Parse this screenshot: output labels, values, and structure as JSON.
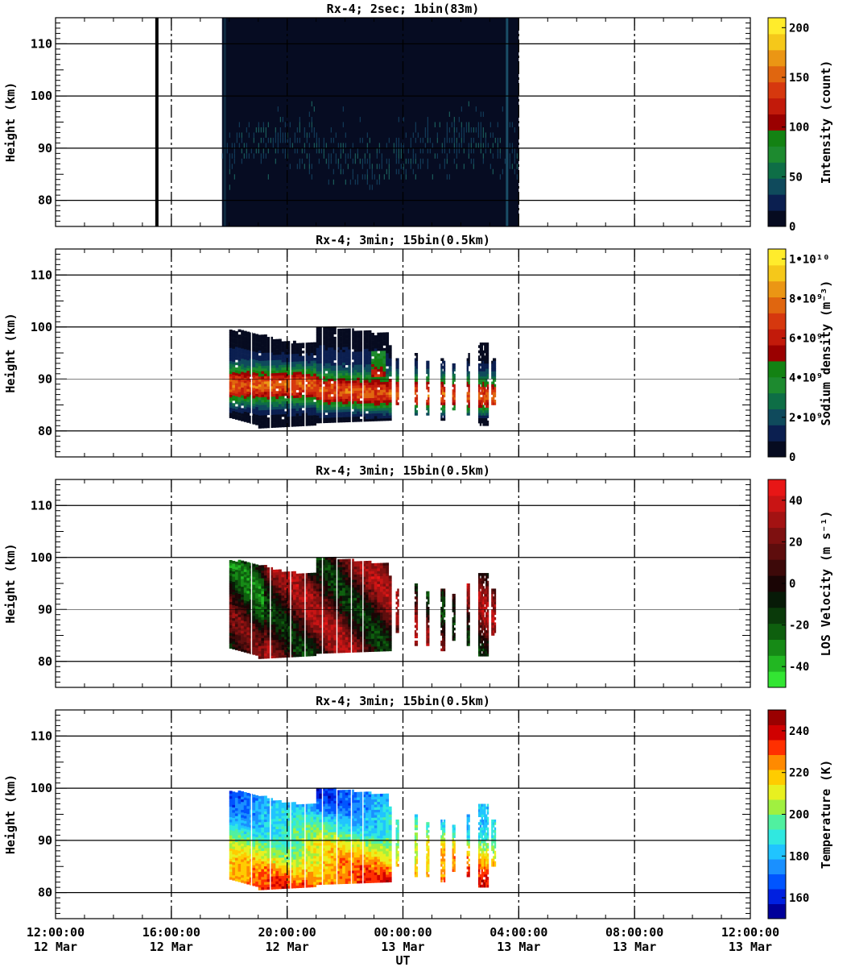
{
  "chart_data": [
    {
      "type": "heatmap",
      "title": "Rx-4;  2sec; 1bin(83m)",
      "ylabel": "Height (km)",
      "xlim_hours_since_12Mar_12UT": [
        0,
        24
      ],
      "ylim": [
        75,
        115
      ],
      "yticks": [
        80,
        90,
        100,
        110
      ],
      "grid": true,
      "colorbar": {
        "label": "Intensity (count)",
        "range": [
          0,
          210
        ],
        "ticks": [
          0,
          50,
          100,
          150,
          200
        ],
        "tick_labels": [
          "0",
          "50",
          "100",
          "150",
          "200"
        ],
        "colors": [
          "#060b20",
          "#0b1f50",
          "#0f4a5c",
          "#0e6e46",
          "#1d8a2f",
          "#138213",
          "#9a0000",
          "#c21a0a",
          "#d6380e",
          "#e0660f",
          "#eb9614",
          "#f5c81a",
          "#ffec2c"
        ]
      },
      "data_extent": {
        "start": "2025-03-12 17:45",
        "end": "2025-03-13 04:00"
      },
      "signal_layer_km": [
        82,
        98
      ],
      "vertical_marks": [
        "2025-03-12 15:30"
      ]
    },
    {
      "type": "heatmap",
      "title": "Rx-4; 3min; 15bin(0.5km)",
      "ylabel": "Height (km)",
      "ylim": [
        75,
        115
      ],
      "yticks": [
        80,
        90,
        100,
        110
      ],
      "grid": true,
      "colorbar": {
        "label": "Sodium density (m⁻³)",
        "range": [
          0,
          10500000000.0
        ],
        "ticks": [
          0,
          2000000000.0,
          4000000000.0,
          6000000000.0,
          8000000000.0,
          10000000000.0
        ],
        "tick_labels": [
          "0",
          "2•10⁹",
          "4•10⁹",
          "6•10⁹",
          "8•10⁹",
          "1•10¹⁰"
        ],
        "colors": [
          "#060b20",
          "#0b1f50",
          "#0f4a5c",
          "#0e6e46",
          "#1d8a2f",
          "#138213",
          "#9a0000",
          "#c21a0a",
          "#d6380e",
          "#e0660f",
          "#eb9614",
          "#f5c81a",
          "#ffec2c"
        ]
      },
      "data_extent": {
        "start": "2025-03-12 18:00",
        "end": "2025-03-13 03:30"
      },
      "layer_km": [
        80,
        100
      ],
      "peak_density_km": [
        87,
        93
      ]
    },
    {
      "type": "heatmap",
      "title": "Rx-4; 3min; 15bin(0.5km)",
      "ylabel": "Height (km)",
      "ylim": [
        75,
        115
      ],
      "yticks": [
        80,
        90,
        100,
        110
      ],
      "grid": true,
      "colorbar": {
        "label": "LOS Velocity (m s⁻¹)",
        "range": [
          -50,
          50
        ],
        "ticks": [
          -40,
          -20,
          0,
          20,
          40
        ],
        "tick_labels": [
          "-40",
          "-20",
          "0",
          "20",
          "40"
        ],
        "colors": [
          "#33e533",
          "#22b722",
          "#168a16",
          "#0e5f0e",
          "#0a3a0a",
          "#071a07",
          "#1a0505",
          "#3d0909",
          "#5e0d0d",
          "#7e1010",
          "#a31212",
          "#c91414",
          "#e81616"
        ]
      },
      "data_extent": {
        "start": "2025-03-12 18:00",
        "end": "2025-03-13 03:30"
      }
    },
    {
      "type": "heatmap",
      "title": "Rx-4; 3min; 15bin(0.5km)",
      "ylabel": "Height (km)",
      "xlabel": "UT",
      "ylim": [
        75,
        115
      ],
      "yticks": [
        80,
        90,
        100,
        110
      ],
      "grid": true,
      "colorbar": {
        "label": "Temperature (K)",
        "range": [
          150,
          250
        ],
        "ticks": [
          160,
          180,
          200,
          220,
          240
        ],
        "tick_labels": [
          "160",
          "180",
          "200",
          "220",
          "240"
        ],
        "colors": [
          "#00009a",
          "#0020e0",
          "#0055ff",
          "#1a90ff",
          "#20c4ff",
          "#30e8e0",
          "#50f0a0",
          "#a0f040",
          "#e8f020",
          "#ffcc00",
          "#ff8a00",
          "#ff3000",
          "#d00000",
          "#9a0000"
        ]
      },
      "data_extent": {
        "start": "2025-03-12 18:00",
        "end": "2025-03-13 03:30"
      },
      "cold_layer_km": [
        92,
        100
      ],
      "warm_layer_km": [
        81,
        89
      ]
    }
  ],
  "xaxis": {
    "label": "UT",
    "ticks": [
      {
        "time": "12:00:00",
        "date": "12 Mar"
      },
      {
        "time": "16:00:00",
        "date": "12 Mar"
      },
      {
        "time": "20:00:00",
        "date": "12 Mar"
      },
      {
        "time": "00:00:00",
        "date": "13 Mar"
      },
      {
        "time": "04:00:00",
        "date": "13 Mar"
      },
      {
        "time": "08:00:00",
        "date": "13 Mar"
      },
      {
        "time": "12:00:00",
        "date": "13 Mar"
      }
    ]
  }
}
